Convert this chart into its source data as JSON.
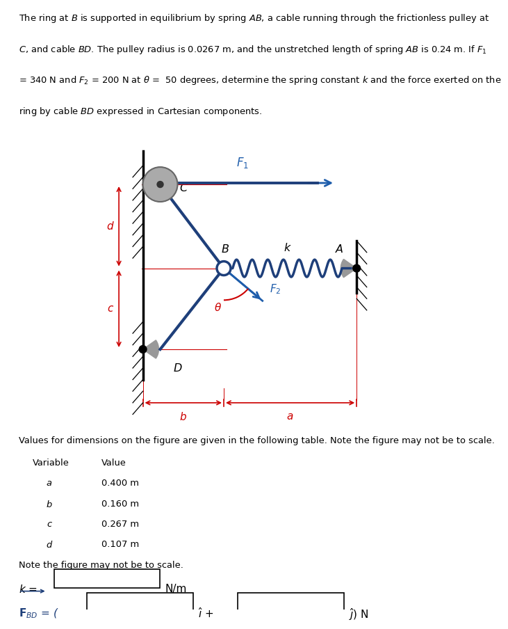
{
  "fig_bg": "#ffffff",
  "text_color": "#000000",
  "blue_cable": "#1e3f7a",
  "blue_force": "#1e5dab",
  "red_dim": "#cc0000",
  "spring_color": "#1e3f7a",
  "wall_color": "#888888",
  "pulley_color": "#aaaaaa",
  "pulley_inner": "#333333",
  "title_lines": [
    "The ring at $B$ is supported in equilibrium by spring $AB$, a cable running through the frictionless pulley at",
    "$C$, and cable $BD$. The pulley radius is 0.0267 m, and the unstretched length of spring $AB$ is 0.24 m. If $F_1$",
    "= 340 N and $F_2$ = 200 N at $\\theta$ =  50 degrees, determine the spring constant $k$ and the force exerted on the",
    "ring by cable $BD$ expressed in Cartesian components."
  ]
}
